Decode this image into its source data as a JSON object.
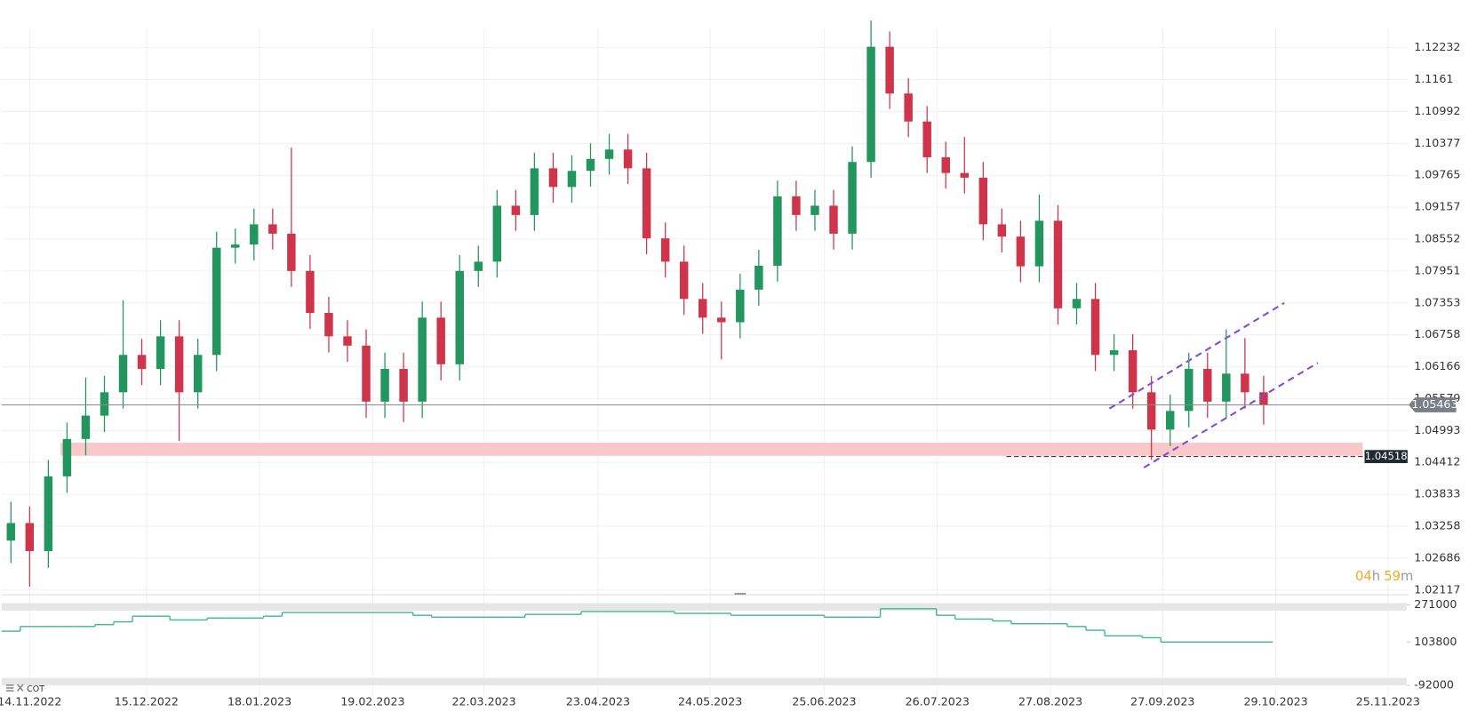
{
  "chart_data": {
    "type": "candlestick",
    "log_y": true,
    "grid": true,
    "up_color": "#23955e",
    "down_color": "#d0344a",
    "open": [
      1.03,
      1.03315,
      1.02812,
      1.04159,
      1.04839,
      1.05266,
      1.05695,
      1.06385,
      1.06126,
      1.0673,
      1.05695,
      1.06385,
      1.0839,
      1.0845,
      1.08832,
      1.08655,
      1.07952,
      1.07166,
      1.0673,
      1.06557,
      1.05523,
      1.06126,
      1.05523,
      1.07078,
      1.06212,
      1.07952,
      1.08127,
      1.09186,
      1.09009,
      1.09899,
      1.09542,
      1.0985,
      1.10079,
      1.10259,
      1.09899,
      1.08567,
      1.08127,
      1.07427,
      1.07078,
      1.06992,
      1.07601,
      1.0805,
      1.09364,
      1.09009,
      1.09186,
      1.08655,
      1.1002,
      1.1225,
      1.1134,
      1.10798,
      1.1011,
      1.09809,
      1.0972,
      1.08832,
      1.086,
      1.08039,
      1.089,
      1.07252,
      1.07427,
      1.06385,
      1.06471,
      1.05695,
      1.0501,
      1.05352,
      1.06126,
      1.05523,
      1.06039,
      1.05695
    ],
    "high": [
      1.037,
      1.03615,
      1.04459,
      1.05139,
      1.05966,
      1.05995,
      1.074,
      1.06685,
      1.0703,
      1.0703,
      1.06685,
      1.0869,
      1.0875,
      1.09132,
      1.09132,
      1.10295,
      1.08252,
      1.07466,
      1.0703,
      1.06857,
      1.06426,
      1.06426,
      1.07378,
      1.07378,
      1.08252,
      1.08427,
      1.09486,
      1.09486,
      1.10199,
      1.10199,
      1.1015,
      1.10379,
      1.10559,
      1.10559,
      1.10199,
      1.08867,
      1.08427,
      1.07727,
      1.07378,
      1.07901,
      1.0835,
      1.09664,
      1.09664,
      1.09486,
      1.09486,
      1.1032,
      1.12763,
      1.1255,
      1.1164,
      1.11098,
      1.1041,
      1.105,
      1.1002,
      1.09132,
      1.089,
      1.094,
      1.092,
      1.07727,
      1.07727,
      1.06771,
      1.06771,
      1.05995,
      1.05652,
      1.06426,
      1.06426,
      1.0686,
      1.067,
      1.06
    ],
    "low": [
      1.026,
      1.02178,
      1.02512,
      1.03859,
      1.04539,
      1.04966,
      1.05395,
      1.05826,
      1.05826,
      1.048,
      1.05395,
      1.06085,
      1.0809,
      1.0815,
      1.08355,
      1.07652,
      1.06866,
      1.0643,
      1.06257,
      1.05223,
      1.05223,
      1.0515,
      1.05223,
      1.05912,
      1.05912,
      1.07652,
      1.07827,
      1.08709,
      1.08709,
      1.09242,
      1.09242,
      1.0955,
      1.09779,
      1.09599,
      1.08267,
      1.07827,
      1.07127,
      1.06778,
      1.063,
      1.06692,
      1.07301,
      1.0775,
      1.08709,
      1.08709,
      1.08355,
      1.08355,
      1.0972,
      1.1104,
      1.10498,
      1.0981,
      1.09509,
      1.0942,
      1.08532,
      1.083,
      1.07739,
      1.07739,
      1.06952,
      1.06952,
      1.06085,
      1.06085,
      1.05395,
      1.0446,
      1.0471,
      1.05052,
      1.05223,
      1.05223,
      1.05395,
      1.051
    ],
    "close": [
      1.03315,
      1.02812,
      1.04159,
      1.04839,
      1.05266,
      1.05695,
      1.06385,
      1.06126,
      1.0673,
      1.05695,
      1.06385,
      1.0839,
      1.0845,
      1.08832,
      1.08655,
      1.07952,
      1.07166,
      1.0673,
      1.06557,
      1.05523,
      1.06126,
      1.05523,
      1.07078,
      1.06212,
      1.07952,
      1.08127,
      1.09186,
      1.09009,
      1.09899,
      1.09542,
      1.0985,
      1.10079,
      1.10259,
      1.09899,
      1.08567,
      1.08127,
      1.07427,
      1.07078,
      1.06992,
      1.07601,
      1.0805,
      1.09364,
      1.09009,
      1.09186,
      1.08655,
      1.1002,
      1.1225,
      1.1134,
      1.10798,
      1.1011,
      1.09809,
      1.0972,
      1.08832,
      1.086,
      1.08039,
      1.089,
      1.07252,
      1.07427,
      1.06385,
      1.06471,
      1.05695,
      1.0501,
      1.05352,
      1.06126,
      1.05523,
      1.06039,
      1.05695,
      1.05463
    ],
    "xlim": [
      -0.5,
      74.75
    ],
    "xticks": [
      {
        "value": 1,
        "label": "14.11.2022"
      },
      {
        "value": 7.25,
        "label": "15.12.2022"
      },
      {
        "value": 13.3,
        "label": "18.01.2023"
      },
      {
        "value": 19.35,
        "label": "19.02.2023"
      },
      {
        "value": 25.3,
        "label": "22.03.2023"
      },
      {
        "value": 31.4,
        "label": "23.04.2023"
      },
      {
        "value": 37.4,
        "label": "24.05.2023"
      },
      {
        "value": 43.5,
        "label": "25.06.2023"
      },
      {
        "value": 49.55,
        "label": "26.07.2023"
      },
      {
        "value": 55.6,
        "label": "27.08.2023"
      },
      {
        "value": 61.6,
        "label": "27.09.2023"
      },
      {
        "value": 67.65,
        "label": "29.10.2023"
      },
      {
        "value": 73.65,
        "label": "25.11.2023"
      }
    ],
    "ylim": [
      1.02034,
      1.13168
    ],
    "yticks": [
      1.12232,
      1.1161,
      1.10992,
      1.10377,
      1.09765,
      1.09157,
      1.08552,
      1.07951,
      1.07353,
      1.06758,
      1.06166,
      1.05579,
      1.04993,
      1.04412,
      1.03833,
      1.03258,
      1.02686,
      1.02117
    ],
    "zone": [
      1.04532,
      1.04771
    ],
    "zone_color": "#f9c9c9",
    "level": 1.04518,
    "countdown": [
      "04",
      "h",
      "59",
      "m"
    ],
    "indicator": {
      "name": "COT",
      "type": "step",
      "color": "#3cb88a",
      "values": [
        152600,
        173700,
        173700,
        173700,
        173700,
        182100,
        194700,
        220000,
        220000,
        203200,
        203200,
        211600,
        211600,
        211600,
        220000,
        236800,
        236800,
        236800,
        236800,
        236800,
        236800,
        236800,
        224200,
        215800,
        215800,
        215800,
        215800,
        215800,
        228400,
        228400,
        228400,
        241100,
        241100,
        241100,
        241100,
        241100,
        232600,
        232600,
        232600,
        224200,
        224200,
        224200,
        224200,
        224200,
        215800,
        215800,
        215800,
        253700,
        253700,
        253700,
        224200,
        207400,
        207400,
        198900,
        186300,
        186300,
        186300,
        173700,
        156800,
        131600,
        131600,
        123200,
        103800,
        103800,
        103800,
        103800,
        103800,
        103800
      ],
      "y2lim": [
        -100000,
        300000
      ],
      "y2ticks": [
        271000,
        103800,
        -92000
      ]
    }
  }
}
